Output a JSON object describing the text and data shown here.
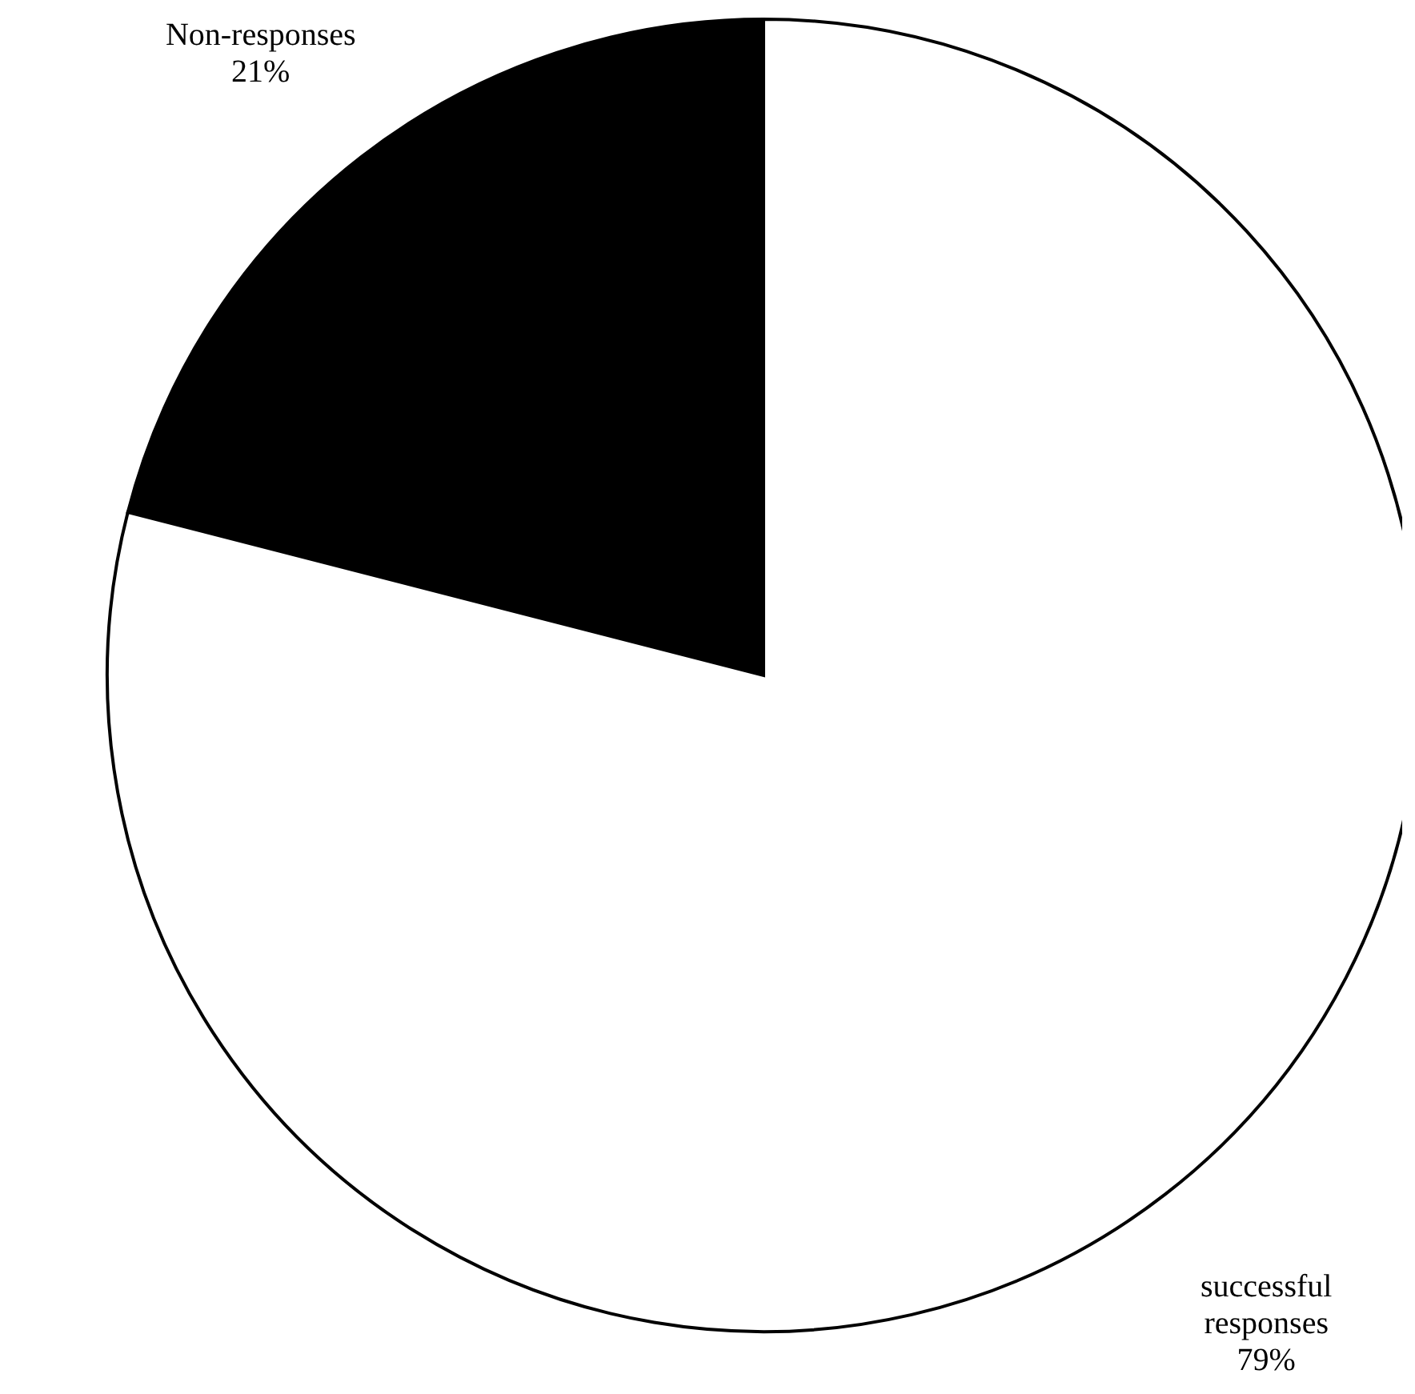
{
  "chart_data": {
    "type": "pie",
    "categories": [
      "Non-responses",
      "successful responses"
    ],
    "values": [
      21,
      79
    ],
    "colors": [
      "#000000",
      "#ffffff"
    ],
    "value_labels": [
      "21%",
      "79%"
    ]
  }
}
